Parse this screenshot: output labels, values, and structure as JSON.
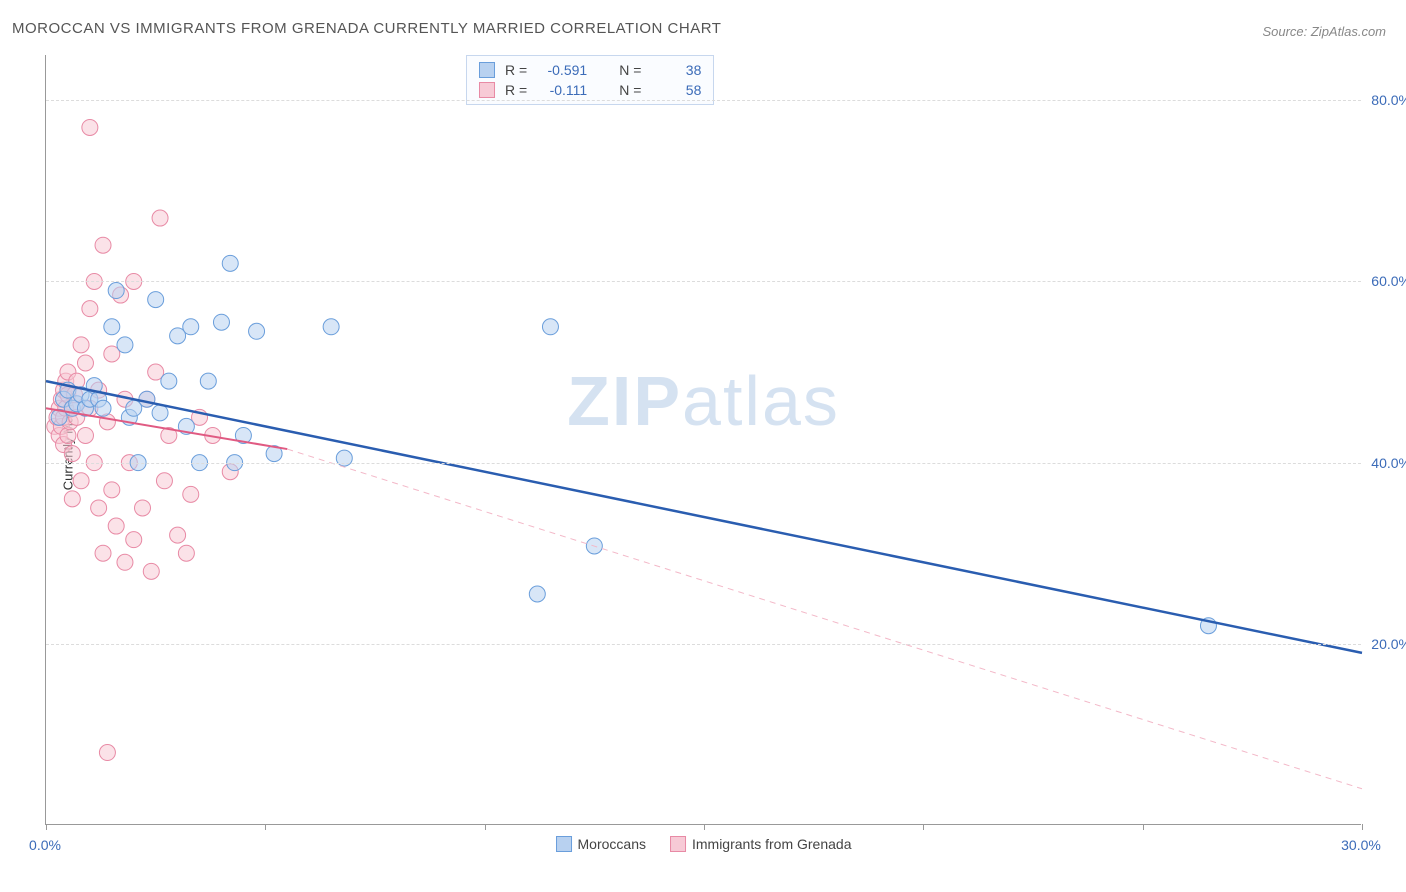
{
  "title": "MOROCCAN VS IMMIGRANTS FROM GRENADA CURRENTLY MARRIED CORRELATION CHART",
  "source": "Source: ZipAtlas.com",
  "watermark": {
    "part1": "ZIP",
    "part2": "atlas"
  },
  "y_axis_label": "Currently Married",
  "chart": {
    "type": "scatter",
    "xlim": [
      0,
      30
    ],
    "ylim": [
      0,
      85
    ],
    "x_ticks": [
      0,
      5,
      10,
      15,
      20,
      25,
      30
    ],
    "x_tick_labels": {
      "0": "0.0%",
      "30": "30.0%"
    },
    "y_ticks": [
      20,
      40,
      60,
      80
    ],
    "y_tick_labels": {
      "20": "20.0%",
      "40": "40.0%",
      "60": "60.0%",
      "80": "80.0%"
    },
    "background_color": "#ffffff",
    "grid_color": "#dcdcdc",
    "axis_color": "#999999",
    "tick_label_color": "#3b6bb8",
    "marker_radius": 8,
    "marker_opacity": 0.55,
    "series": [
      {
        "name": "Moroccans",
        "color_fill": "#b8d1f0",
        "color_stroke": "#6a9edb",
        "R": "-0.591",
        "N": "38",
        "trend": {
          "x1": 0,
          "y1": 49,
          "x2": 30,
          "y2": 19,
          "color": "#2a5db0",
          "width": 2.5,
          "dash": "none"
        },
        "points": [
          [
            0.3,
            45
          ],
          [
            0.4,
            47
          ],
          [
            0.5,
            48
          ],
          [
            0.6,
            46
          ],
          [
            0.7,
            46.5
          ],
          [
            0.8,
            47.5
          ],
          [
            0.9,
            46
          ],
          [
            1.0,
            47
          ],
          [
            1.1,
            48.5
          ],
          [
            1.2,
            47
          ],
          [
            1.3,
            46
          ],
          [
            1.5,
            55
          ],
          [
            1.6,
            59
          ],
          [
            1.8,
            53
          ],
          [
            1.9,
            45
          ],
          [
            2.0,
            46
          ],
          [
            2.1,
            40
          ],
          [
            2.3,
            47
          ],
          [
            2.5,
            58
          ],
          [
            2.6,
            45.5
          ],
          [
            2.8,
            49
          ],
          [
            3.0,
            54
          ],
          [
            3.2,
            44
          ],
          [
            3.3,
            55
          ],
          [
            3.5,
            40
          ],
          [
            3.7,
            49
          ],
          [
            4.0,
            55.5
          ],
          [
            4.2,
            62
          ],
          [
            4.3,
            40
          ],
          [
            4.5,
            43
          ],
          [
            4.8,
            54.5
          ],
          [
            5.2,
            41
          ],
          [
            6.5,
            55
          ],
          [
            6.8,
            40.5
          ],
          [
            11.5,
            55
          ],
          [
            12.5,
            30.8
          ],
          [
            11.2,
            25.5
          ],
          [
            26.5,
            22
          ]
        ]
      },
      {
        "name": "Immigrants from Grenada",
        "color_fill": "#f7cad6",
        "color_stroke": "#e88aa5",
        "R": "-0.111",
        "N": "58",
        "trend_solid": {
          "x1": 0,
          "y1": 46,
          "x2": 5.5,
          "y2": 41.5,
          "color": "#e05a82",
          "width": 2,
          "dash": "none"
        },
        "trend_dashed": {
          "x1": 5.5,
          "y1": 41.5,
          "x2": 30,
          "y2": 4,
          "color": "#f3b8c8",
          "width": 1,
          "dash": "6,5"
        },
        "points": [
          [
            0.2,
            44
          ],
          [
            0.25,
            45
          ],
          [
            0.3,
            46
          ],
          [
            0.3,
            43
          ],
          [
            0.35,
            47
          ],
          [
            0.35,
            44
          ],
          [
            0.4,
            48
          ],
          [
            0.4,
            45
          ],
          [
            0.4,
            42
          ],
          [
            0.45,
            46
          ],
          [
            0.45,
            49
          ],
          [
            0.5,
            43
          ],
          [
            0.5,
            47.5
          ],
          [
            0.5,
            50
          ],
          [
            0.55,
            44.5
          ],
          [
            0.6,
            46
          ],
          [
            0.6,
            41
          ],
          [
            0.65,
            47.5
          ],
          [
            0.7,
            45
          ],
          [
            0.7,
            49
          ],
          [
            0.8,
            53
          ],
          [
            0.8,
            38
          ],
          [
            0.9,
            43
          ],
          [
            0.9,
            51
          ],
          [
            1.0,
            57
          ],
          [
            1.0,
            46
          ],
          [
            1.1,
            40
          ],
          [
            1.1,
            60
          ],
          [
            1.2,
            35
          ],
          [
            1.2,
            48
          ],
          [
            1.3,
            64
          ],
          [
            1.3,
            30
          ],
          [
            1.4,
            44.5
          ],
          [
            1.5,
            37
          ],
          [
            1.5,
            52
          ],
          [
            1.6,
            33
          ],
          [
            1.7,
            58.5
          ],
          [
            1.8,
            29
          ],
          [
            1.8,
            47
          ],
          [
            1.9,
            40
          ],
          [
            2.0,
            31.5
          ],
          [
            2.0,
            60
          ],
          [
            2.2,
            35
          ],
          [
            2.3,
            47
          ],
          [
            2.4,
            28
          ],
          [
            2.5,
            50
          ],
          [
            2.6,
            67
          ],
          [
            2.7,
            38
          ],
          [
            2.8,
            43
          ],
          [
            3.0,
            32
          ],
          [
            3.2,
            30
          ],
          [
            3.3,
            36.5
          ],
          [
            3.5,
            45
          ],
          [
            3.8,
            43
          ],
          [
            4.2,
            39
          ],
          [
            1.0,
            77
          ],
          [
            1.4,
            8
          ],
          [
            0.6,
            36
          ]
        ]
      }
    ]
  },
  "legend": [
    {
      "label": "Moroccans",
      "swatch": "blue"
    },
    {
      "label": "Immigrants from Grenada",
      "swatch": "pink"
    }
  ],
  "stats_labels": {
    "R": "R =",
    "N": "N ="
  }
}
